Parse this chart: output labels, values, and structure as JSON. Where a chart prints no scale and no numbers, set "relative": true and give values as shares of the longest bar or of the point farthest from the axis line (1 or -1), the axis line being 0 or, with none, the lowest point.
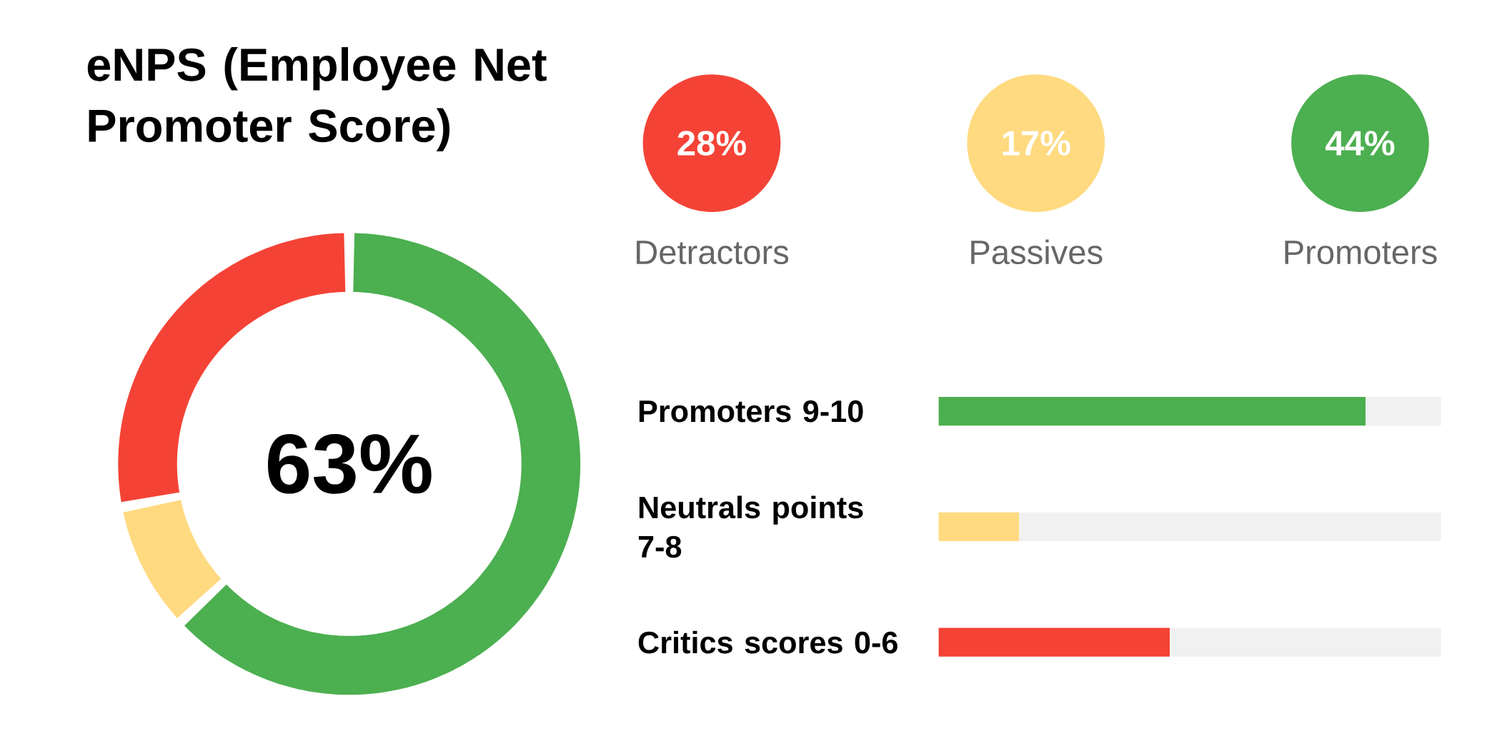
{
  "chart_data": [
    {
      "type": "donut",
      "title": "eNPS (Employee Net Promoter Score)",
      "categories": [
        null,
        null,
        null
      ],
      "values": [
        63,
        9,
        28
      ],
      "colors": [
        "#4caf50",
        "#ffda80",
        "#f44336"
      ],
      "annotations": [
        "63%"
      ]
    },
    {
      "type": "other",
      "categories": [
        "Detractors",
        "Passives",
        "Promoters"
      ],
      "values": [
        28,
        17,
        44
      ],
      "value_labels": [
        "28%",
        "17%",
        "44%"
      ],
      "colors": [
        "#f44336",
        "#ffda80",
        "#4caf50"
      ]
    },
    {
      "type": "bar",
      "orientation": "horizontal",
      "stacked": true,
      "relative": true,
      "categories": [
        "Promoters 9-10",
        "Neutrals points 7-8",
        "Critics scores 0-6"
      ],
      "series": [
        {
          "colors": [
            "#4caf50",
            "#ffda80",
            "#f44336"
          ],
          "values": [
            0.85,
            0.16,
            0.46
          ]
        },
        {
          "color": "#f1f1f1",
          "values": [
            0.15,
            0.84,
            0.54
          ]
        }
      ]
    }
  ]
}
